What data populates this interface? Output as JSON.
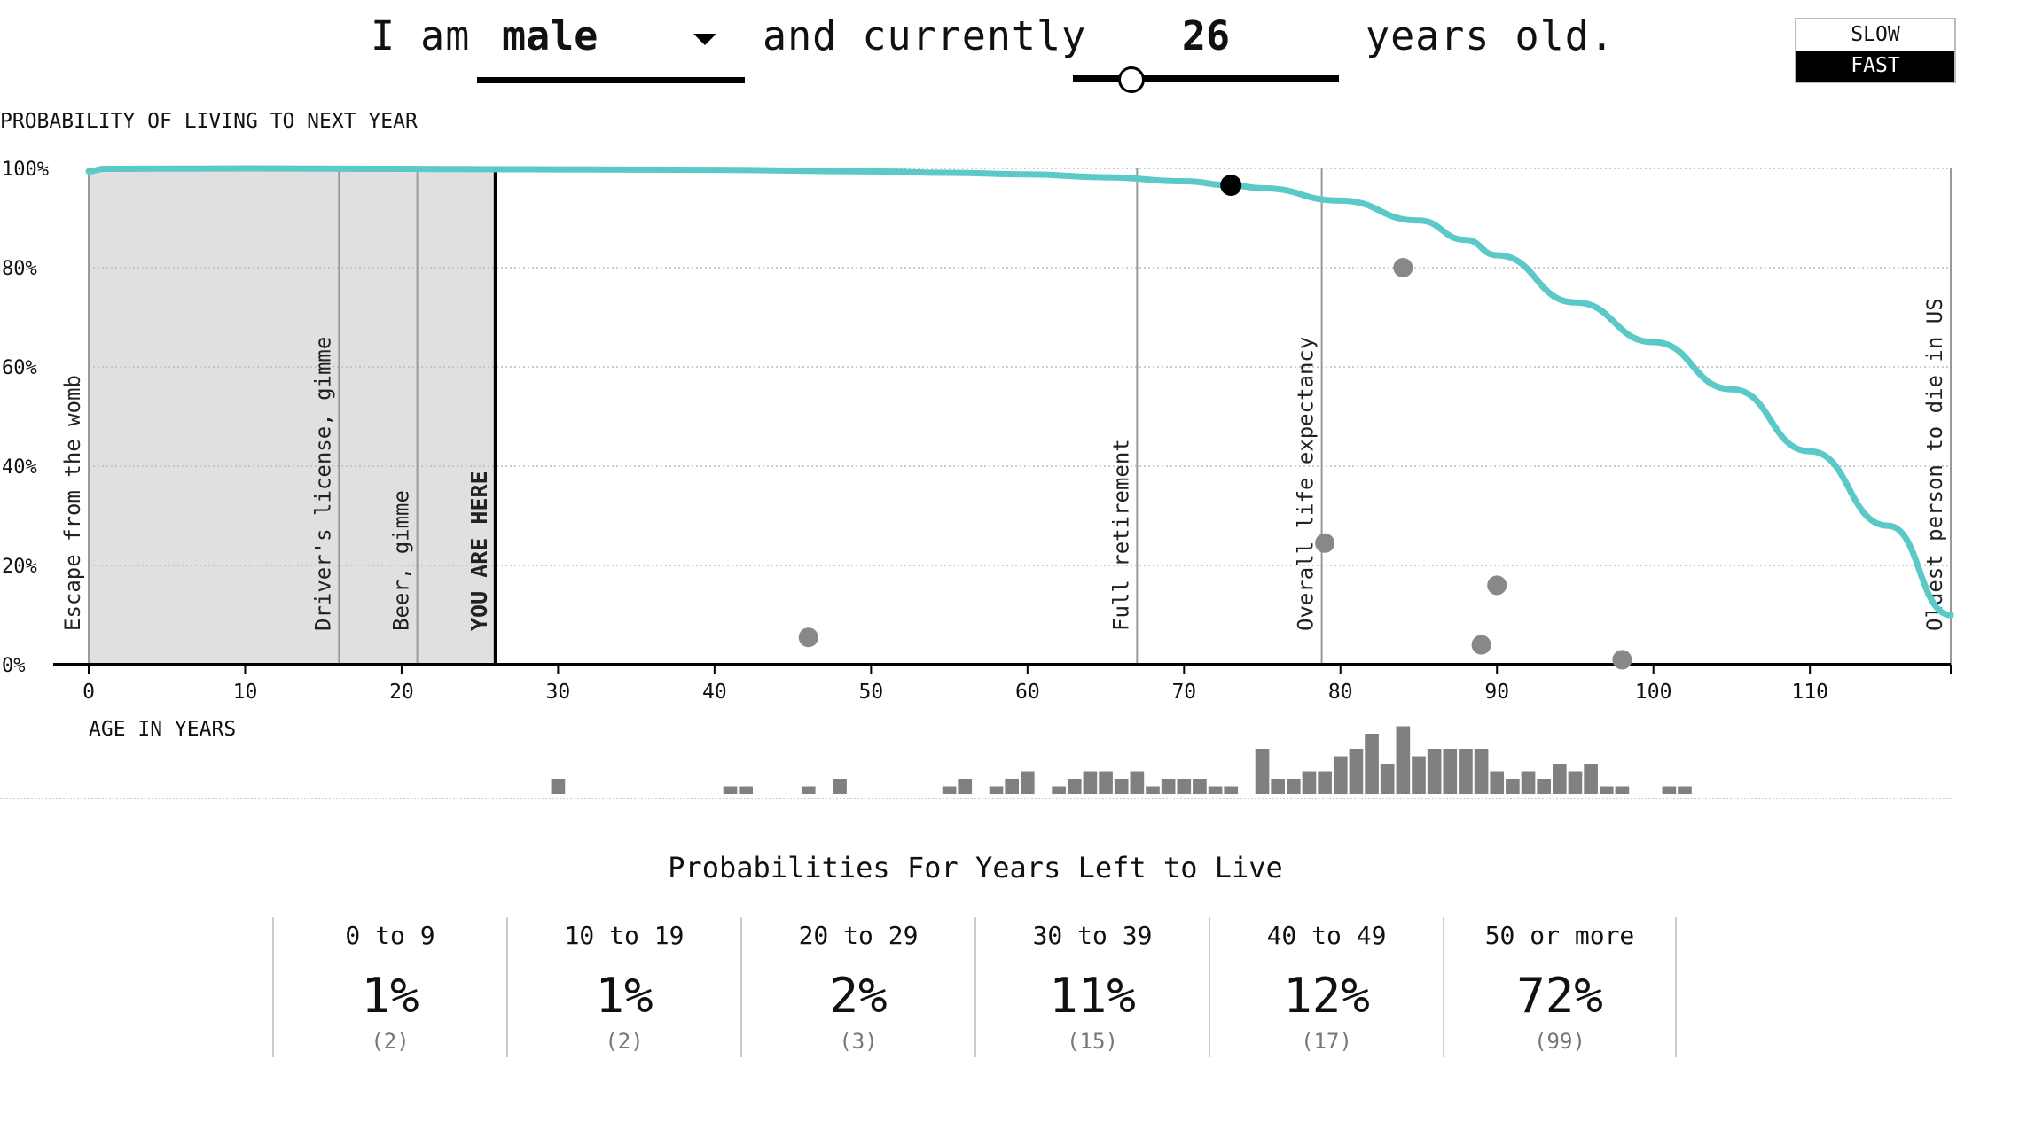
{
  "header": {
    "intro_i_am": "I am",
    "gender": "male",
    "and_currently": "and currently",
    "age": "26",
    "years_old": "years old.",
    "speed_slow": "SLOW",
    "speed_fast": "FAST",
    "slider_age_fraction": 0.22
  },
  "chart_data": {
    "type": "line",
    "ylabel": "PROBABILITY OF LIVING TO NEXT YEAR",
    "xlabel": "AGE IN YEARS",
    "xlim": [
      0,
      119
    ],
    "ylim": [
      0,
      100
    ],
    "x_ticks": [
      0,
      10,
      20,
      30,
      40,
      50,
      60,
      70,
      80,
      90,
      100,
      110
    ],
    "y_ticks": [
      "0%",
      "20%",
      "40%",
      "60%",
      "80%",
      "100%"
    ],
    "curve": {
      "x": [
        0,
        1,
        10,
        20,
        30,
        40,
        50,
        55,
        60,
        65,
        70,
        73,
        75,
        80,
        85,
        88,
        90,
        95,
        100,
        105,
        110,
        115,
        119
      ],
      "y": [
        99.4,
        99.9,
        100,
        99.9,
        99.8,
        99.7,
        99.4,
        99.1,
        98.8,
        98.2,
        97.4,
        96.6,
        96,
        93.5,
        89.5,
        85.6,
        82.5,
        73,
        65,
        55.5,
        43,
        28,
        10
      ]
    },
    "shaded_until_age": 26,
    "current_point": {
      "x": 73,
      "y": 96.6
    },
    "annotations": [
      {
        "age": 0,
        "label": "Escape from the womb"
      },
      {
        "age": 16,
        "label": "Driver's license, gimme"
      },
      {
        "age": 21,
        "label": "Beer, gimme"
      },
      {
        "age": 26,
        "label": "YOU ARE HERE",
        "current": true
      },
      {
        "age": 67,
        "label": "Full retirement"
      },
      {
        "age": 78.8,
        "label": "Overall life expectancy"
      },
      {
        "age": 119,
        "label": "Oldest person to die in US"
      }
    ],
    "simulated_deaths": [
      {
        "x": 46,
        "y": 5.5
      },
      {
        "x": 79,
        "y": 24.5
      },
      {
        "x": 84,
        "y": 80
      },
      {
        "x": 89,
        "y": 4
      },
      {
        "x": 90,
        "y": 16
      },
      {
        "x": 98,
        "y": 1
      }
    ],
    "histogram": {
      "ages": [
        30,
        41,
        42,
        46,
        48,
        55,
        56,
        58,
        59,
        60,
        62,
        63,
        64,
        65,
        66,
        67,
        68,
        69,
        70,
        71,
        72,
        73,
        75,
        76,
        77,
        78,
        79,
        80,
        81,
        82,
        83,
        84,
        85,
        86,
        87,
        88,
        89,
        90,
        91,
        92,
        93,
        94,
        95,
        96,
        97,
        98,
        101,
        102
      ],
      "counts": [
        1,
        0.5,
        0.5,
        0.5,
        1,
        0.5,
        1,
        0.5,
        1,
        1.5,
        0.5,
        1,
        1.5,
        1.5,
        1,
        1.5,
        0.5,
        1,
        1,
        1,
        0.5,
        0.5,
        3,
        1,
        1,
        1.5,
        1.5,
        2.5,
        3,
        4,
        2,
        4.5,
        2.5,
        3,
        3,
        3,
        3,
        1.5,
        1,
        1.5,
        1,
        2,
        1.5,
        2,
        0.5,
        0.5,
        0.5,
        0.5
      ]
    }
  },
  "bottom": {
    "title": "Probabilities For Years Left to Live",
    "cells": [
      {
        "range": "0 to 9",
        "pct": "1%",
        "count": "(2)"
      },
      {
        "range": "10 to 19",
        "pct": "1%",
        "count": "(2)"
      },
      {
        "range": "20 to 29",
        "pct": "2%",
        "count": "(3)"
      },
      {
        "range": "30 to 39",
        "pct": "11%",
        "count": "(15)"
      },
      {
        "range": "40 to 49",
        "pct": "12%",
        "count": "(17)"
      },
      {
        "range": "50 or more",
        "pct": "72%",
        "count": "(99)"
      }
    ]
  },
  "colors": {
    "curve": "#5cc9c9",
    "shade": "#e0e0e0",
    "dot": "#888888",
    "current_dot": "#000000",
    "hist": "#808080"
  }
}
